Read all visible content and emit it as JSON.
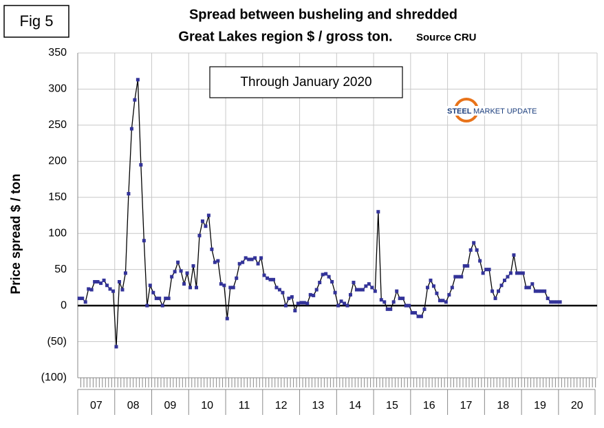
{
  "fig_label": "Fig 5",
  "chart_data": {
    "type": "line",
    "title": "Spread between busheling and shredded",
    "subtitle": "Great Lakes region $ / gross ton.",
    "source": "Source CRU",
    "annotation": "Through January 2020",
    "logo": {
      "word1": "STEEL",
      "word2": "MARKET UPDATE"
    },
    "y_label": "Price spread $ / ton",
    "category_groups": [
      "07",
      "08",
      "09",
      "10",
      "11",
      "12",
      "13",
      "14",
      "15",
      "16",
      "17",
      "18",
      "19",
      "20"
    ],
    "categories": [
      null,
      null,
      null,
      null,
      null,
      null,
      null,
      null,
      null,
      null,
      null,
      null,
      null,
      null,
      null,
      null,
      null,
      null,
      null,
      null,
      null,
      null,
      null,
      null,
      null,
      null,
      null,
      null,
      null,
      null,
      null,
      null,
      null,
      null,
      null,
      null,
      null,
      null,
      null,
      null,
      null,
      null,
      null,
      null,
      null,
      null,
      null,
      null,
      null,
      null,
      null,
      null,
      null,
      null,
      null,
      null,
      null,
      null,
      null,
      null,
      null,
      null,
      null,
      null,
      null,
      null,
      null,
      null,
      null,
      null,
      null,
      null,
      null,
      null,
      null,
      null,
      null,
      null,
      null,
      null,
      null,
      null,
      null,
      null,
      null,
      null,
      null,
      null,
      null,
      null,
      null,
      null,
      null,
      null,
      null,
      null,
      null,
      null,
      null,
      null,
      null,
      null,
      null,
      null,
      null,
      null,
      null,
      null,
      null,
      null,
      null,
      null,
      null,
      null,
      null,
      null,
      null,
      null,
      null,
      null,
      null,
      null,
      null,
      null,
      null,
      null,
      null,
      null,
      null,
      null,
      null,
      null,
      null,
      null,
      null,
      null,
      null,
      null,
      null,
      null,
      null,
      null,
      null,
      null,
      null,
      null,
      null,
      null,
      null,
      null,
      null,
      null,
      null,
      null,
      null,
      null,
      null
    ],
    "series": [
      {
        "name": "Spread",
        "color": "#000000",
        "marker_color": "#333399",
        "values": [
          10,
          10,
          5,
          23,
          22,
          33,
          33,
          31,
          35,
          28,
          23,
          20,
          -57,
          33,
          22,
          45,
          155,
          245,
          285,
          313,
          195,
          90,
          0,
          28,
          18,
          10,
          10,
          0,
          10,
          10,
          40,
          47,
          60,
          48,
          30,
          45,
          25,
          55,
          25,
          97,
          117,
          110,
          125,
          78,
          60,
          62,
          30,
          28,
          -18,
          25,
          25,
          38,
          58,
          60,
          66,
          64,
          64,
          66,
          58,
          66,
          42,
          38,
          36,
          36,
          25,
          22,
          18,
          0,
          10,
          12,
          -7,
          3,
          4,
          4,
          3,
          15,
          14,
          22,
          32,
          43,
          44,
          40,
          33,
          18,
          0,
          6,
          3,
          0,
          15,
          32,
          22,
          22,
          22,
          27,
          30,
          25,
          20,
          130,
          8,
          5,
          -5,
          -5,
          5,
          20,
          10,
          10,
          0,
          0,
          -10,
          -10,
          -15,
          -15,
          -5,
          25,
          35,
          27,
          17,
          7,
          7,
          5,
          15,
          25,
          40,
          40,
          40,
          55,
          55,
          77,
          87,
          77,
          62,
          45,
          50,
          50,
          20,
          10,
          20,
          28,
          35,
          40,
          45,
          70,
          45,
          45,
          45,
          25,
          25,
          30,
          20,
          20,
          20,
          20,
          10,
          5,
          5,
          5,
          5
        ]
      }
    ],
    "ylim": [
      -100,
      350
    ],
    "yticks": [
      {
        "value": -100,
        "label": "(100)"
      },
      {
        "value": -50,
        "label": "(50)"
      },
      0,
      50,
      100,
      150,
      200,
      250,
      300,
      350
    ],
    "grid": true
  }
}
